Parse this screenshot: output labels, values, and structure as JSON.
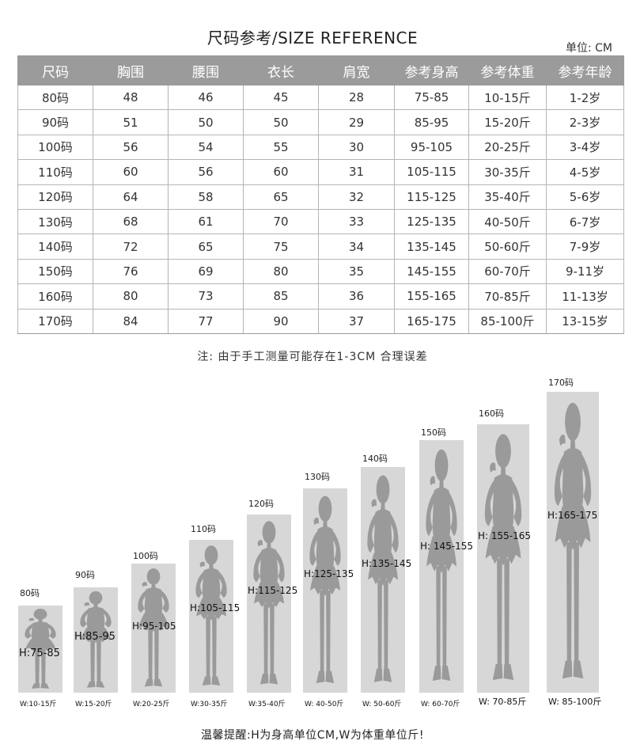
{
  "title": "尺码参考/SIZE REFERENCE",
  "unit": "单位: CM",
  "table": {
    "headers": [
      "尺码",
      "胸围",
      "腰围",
      "衣长",
      "肩宽",
      "参考身高",
      "参考体重",
      "参考年龄"
    ],
    "rows": [
      [
        "80码",
        "48",
        "46",
        "45",
        "28",
        "75-85",
        "10-15斤",
        "1-2岁"
      ],
      [
        "90码",
        "51",
        "50",
        "50",
        "29",
        "85-95",
        "15-20斤",
        "2-3岁"
      ],
      [
        "100码",
        "56",
        "54",
        "55",
        "30",
        "95-105",
        "20-25斤",
        "3-4岁"
      ],
      [
        "110码",
        "60",
        "56",
        "60",
        "31",
        "105-115",
        "30-35斤",
        "4-5岁"
      ],
      [
        "120码",
        "64",
        "58",
        "65",
        "32",
        "115-125",
        "35-40斤",
        "5-6岁"
      ],
      [
        "130码",
        "68",
        "61",
        "70",
        "33",
        "125-135",
        "40-50斤",
        "6-7岁"
      ],
      [
        "140码",
        "72",
        "65",
        "75",
        "34",
        "135-145",
        "50-60斤",
        "7-9岁"
      ],
      [
        "150码",
        "76",
        "69",
        "80",
        "35",
        "145-155",
        "60-70斤",
        "9-11岁"
      ],
      [
        "160码",
        "80",
        "73",
        "85",
        "36",
        "155-165",
        "70-85斤",
        "11-13岁"
      ],
      [
        "170码",
        "84",
        "77",
        "90",
        "37",
        "165-175",
        "85-100斤",
        "13-15岁"
      ]
    ]
  },
  "note": "注: 由于手工测量可能存在1-3CM 合理误差",
  "figures": [
    {
      "size": "80码",
      "height": "H:75-85",
      "weight": "W:10-15斤"
    },
    {
      "size": "90码",
      "height": "H:85-95",
      "weight": "W:15-20斤"
    },
    {
      "size": "100码",
      "height": "H:95-105",
      "weight": "W:20-25斤"
    },
    {
      "size": "110码",
      "height": "H:105-115",
      "weight": "W:30-35斤"
    },
    {
      "size": "120码",
      "height": "H:115-125",
      "weight": "W:35-40斤"
    },
    {
      "size": "130码",
      "height": "H:125-135",
      "weight": "W: 40-50斤"
    },
    {
      "size": "140码",
      "height": "H:135-145",
      "weight": "W: 50-60斤"
    },
    {
      "size": "150码",
      "height": "H: 145-155",
      "weight": "W: 60-70斤"
    },
    {
      "size": "160码",
      "height": "H: 155-165",
      "weight": "W: 70-85斤"
    },
    {
      "size": "170码",
      "height": "H:165-175",
      "weight": "W: 85-100斤"
    }
  ],
  "tip": "温馨提醒:H为身高单位CM,W为体重单位斤!",
  "colors": {
    "header_bg": "#9b9b9b",
    "figure_bg": "#d7d7d7",
    "silhouette": "#9a9a9a"
  }
}
